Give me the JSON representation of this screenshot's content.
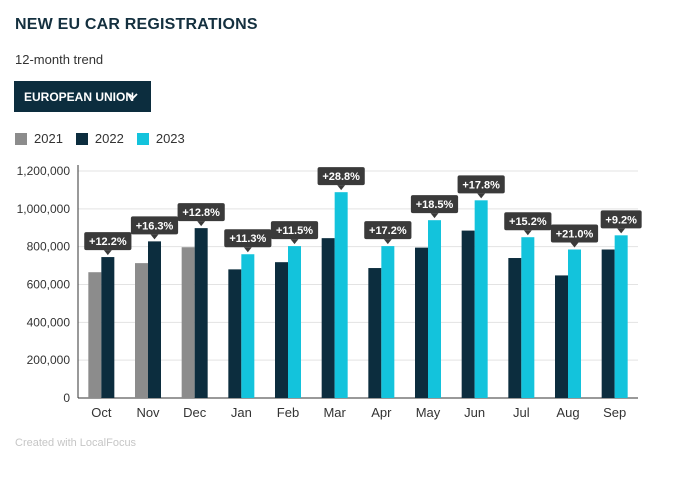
{
  "title": "NEW EU CAR REGISTRATIONS",
  "subtitle": "12-month trend",
  "dropdown": {
    "label": "EUROPEAN UNION",
    "icon": "chevron-down-icon"
  },
  "footer": "Created with LocalFocus",
  "colors": {
    "2021": "#8c8c8c",
    "2022": "#0c2d3e",
    "2023": "#13c3dc",
    "annotation": "#3a3a3a"
  },
  "chart_data": {
    "type": "bar",
    "title": "NEW EU CAR REGISTRATIONS",
    "subtitle": "12-month trend",
    "xlabel": "",
    "ylabel": "",
    "ylim": [
      0,
      1200000
    ],
    "yticks": [
      0,
      200000,
      400000,
      600000,
      800000,
      1000000,
      1200000
    ],
    "ytick_labels": [
      "0",
      "200,000",
      "400,000",
      "600,000",
      "800,000",
      "1,000,000",
      "1,200,000"
    ],
    "grid": true,
    "legend": "top-left",
    "categories": [
      "Oct",
      "Nov",
      "Dec",
      "Jan",
      "Feb",
      "Mar",
      "Apr",
      "May",
      "Jun",
      "Jul",
      "Aug",
      "Sep"
    ],
    "series": [
      {
        "name": "2021",
        "values": [
          665000,
          713000,
          797000,
          null,
          null,
          null,
          null,
          null,
          null,
          null,
          null,
          null
        ]
      },
      {
        "name": "2022",
        "values": [
          745000,
          828000,
          898000,
          680000,
          718000,
          845000,
          687000,
          795000,
          885000,
          740000,
          648000,
          785000
        ]
      },
      {
        "name": "2023",
        "values": [
          null,
          null,
          null,
          760000,
          803000,
          1088000,
          803000,
          940000,
          1045000,
          850000,
          785000,
          860000
        ]
      }
    ],
    "annotations": [
      "+12.2%",
      "+16.3%",
      "+12.8%",
      "+11.3%",
      "+11.5%",
      "+28.8%",
      "+17.2%",
      "+18.5%",
      "+17.8%",
      "+15.2%",
      "+21.0%",
      "+9.2%"
    ]
  }
}
